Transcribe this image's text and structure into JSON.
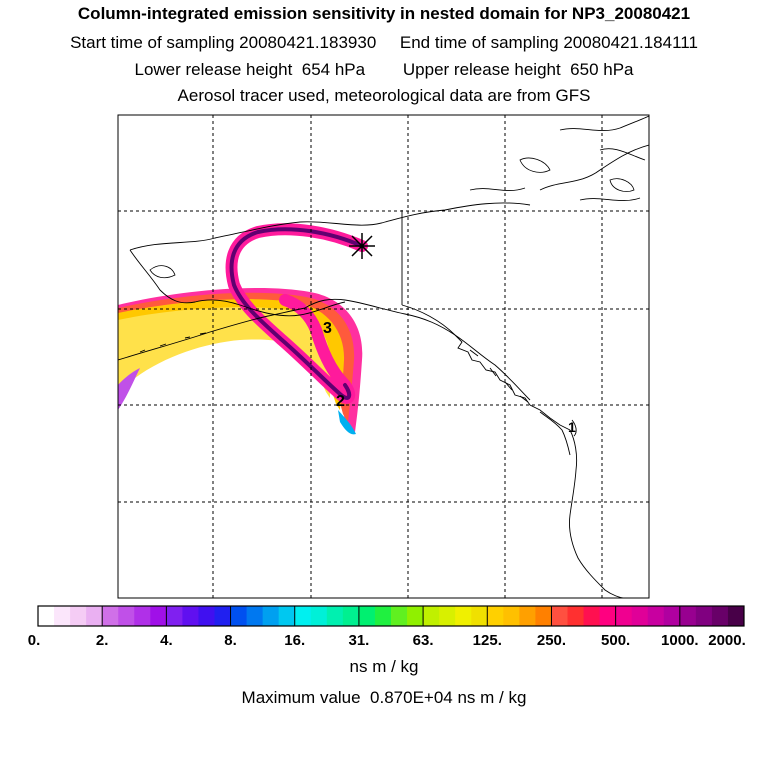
{
  "header": {
    "title": "Column-integrated emission sensitivity in nested domain for NP3_20080421",
    "sampling_line": "Start time of sampling 20080421.183930     End time of sampling 20080421.184111",
    "release_line": "Lower release height  654 hPa        Upper release height  650 hPa",
    "tracer_line": "Aerosol tracer used, meteorological data are from GFS"
  },
  "map": {
    "time_markers": [
      "3",
      "2",
      "1"
    ],
    "release_marker": "star-marker"
  },
  "colorbar": {
    "tick_labels": [
      "0.",
      "2.",
      "4.",
      "8.",
      "16.",
      "31.",
      "63.",
      "125.",
      "250.",
      "500.",
      "1000.",
      "2000."
    ],
    "colors": [
      "#ffffff",
      "#fbe6fb",
      "#f5ccf5",
      "#eab0f2",
      "#d070e8",
      "#c050e8",
      "#b030e8",
      "#a010e8",
      "#8020f0",
      "#6010f0",
      "#4010f0",
      "#2020f0",
      "#0050f0",
      "#0078f0",
      "#00a0f0",
      "#00c8f0",
      "#00f0f0",
      "#00f0d8",
      "#00f0b0",
      "#00f090",
      "#00f070",
      "#20f040",
      "#60f020",
      "#90f000",
      "#c0f000",
      "#d8f000",
      "#f0f000",
      "#f0e000",
      "#ffd000",
      "#ffc000",
      "#ffa000",
      "#ff8000",
      "#ff5040",
      "#ff3030",
      "#ff1050",
      "#ff0080",
      "#f00090",
      "#e00098",
      "#c800a0",
      "#b000a0",
      "#980090",
      "#800080",
      "#680068",
      "#480048"
    ],
    "units": "ns m / kg",
    "max_value_text": "Maximum value  0.870E+04 ns m / kg"
  }
}
